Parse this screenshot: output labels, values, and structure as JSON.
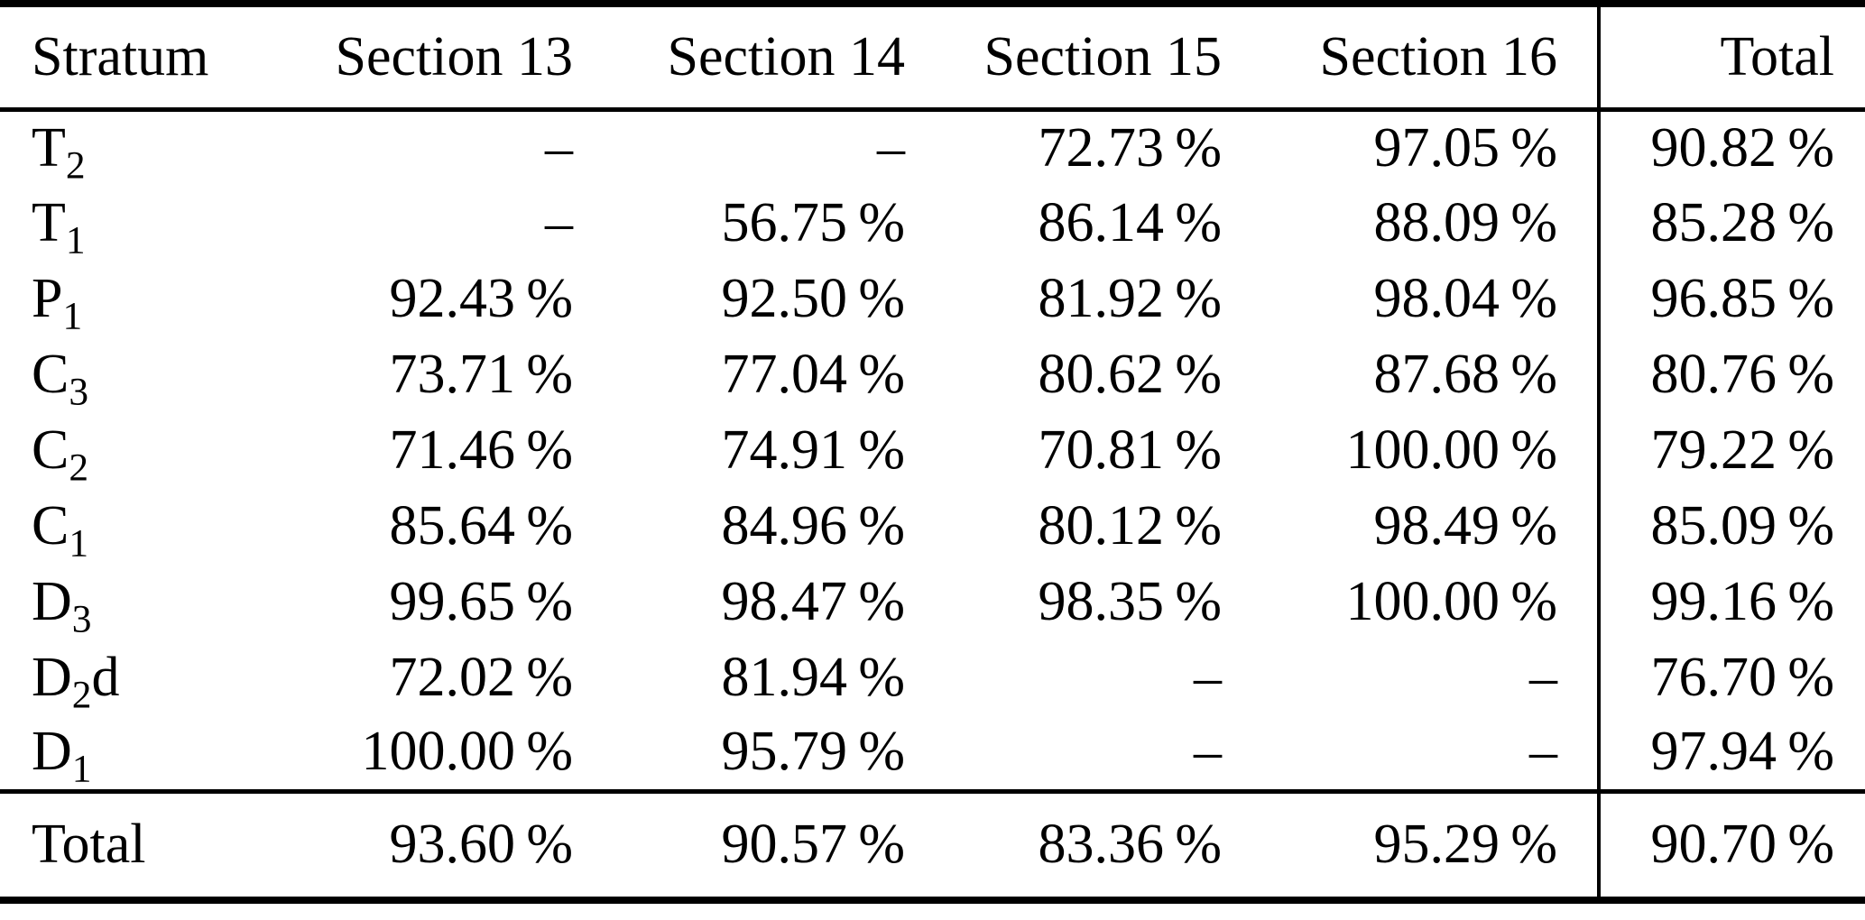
{
  "table": {
    "header": {
      "columns": [
        "Stratum",
        "Section 13",
        "Section 14",
        "Section 15",
        "Section 16",
        "Total"
      ]
    },
    "rows": [
      {
        "label": {
          "b": "T",
          "s": "2",
          "t": ""
        },
        "s13": "–",
        "s14": "–",
        "s15": "72.73 %",
        "s16": "97.05 %",
        "total": "90.82 %"
      },
      {
        "label": {
          "b": "T",
          "s": "1",
          "t": ""
        },
        "s13": "–",
        "s14": "56.75 %",
        "s15": "86.14 %",
        "s16": "88.09 %",
        "total": "85.28 %"
      },
      {
        "label": {
          "b": "P",
          "s": "1",
          "t": ""
        },
        "s13": "92.43 %",
        "s14": "92.50 %",
        "s15": "81.92 %",
        "s16": "98.04 %",
        "total": "96.85 %"
      },
      {
        "label": {
          "b": "C",
          "s": "3",
          "t": ""
        },
        "s13": "73.71 %",
        "s14": "77.04 %",
        "s15": "80.62 %",
        "s16": "87.68 %",
        "total": "80.76 %"
      },
      {
        "label": {
          "b": "C",
          "s": "2",
          "t": ""
        },
        "s13": "71.46 %",
        "s14": "74.91 %",
        "s15": "70.81 %",
        "s16": "100.00 %",
        "total": "79.22 %"
      },
      {
        "label": {
          "b": "C",
          "s": "1",
          "t": ""
        },
        "s13": "85.64 %",
        "s14": "84.96 %",
        "s15": "80.12 %",
        "s16": "98.49 %",
        "total": "85.09 %"
      },
      {
        "label": {
          "b": "D",
          "s": "3",
          "t": ""
        },
        "s13": "99.65 %",
        "s14": "98.47 %",
        "s15": "98.35 %",
        "s16": "100.00 %",
        "total": "99.16 %"
      },
      {
        "label": {
          "b": "D",
          "s": "2",
          "t": "d"
        },
        "s13": "72.02 %",
        "s14": "81.94 %",
        "s15": "–",
        "s16": "–",
        "total": "76.70 %"
      },
      {
        "label": {
          "b": "D",
          "s": "1",
          "t": ""
        },
        "s13": "100.00 %",
        "s14": "95.79 %",
        "s15": "–",
        "s16": "–",
        "total": "97.94 %"
      }
    ],
    "footer": {
      "label": "Total",
      "s13": "93.60 %",
      "s14": "90.57 %",
      "s15": "83.36 %",
      "s16": "95.29 %",
      "total": "90.70 %"
    }
  }
}
